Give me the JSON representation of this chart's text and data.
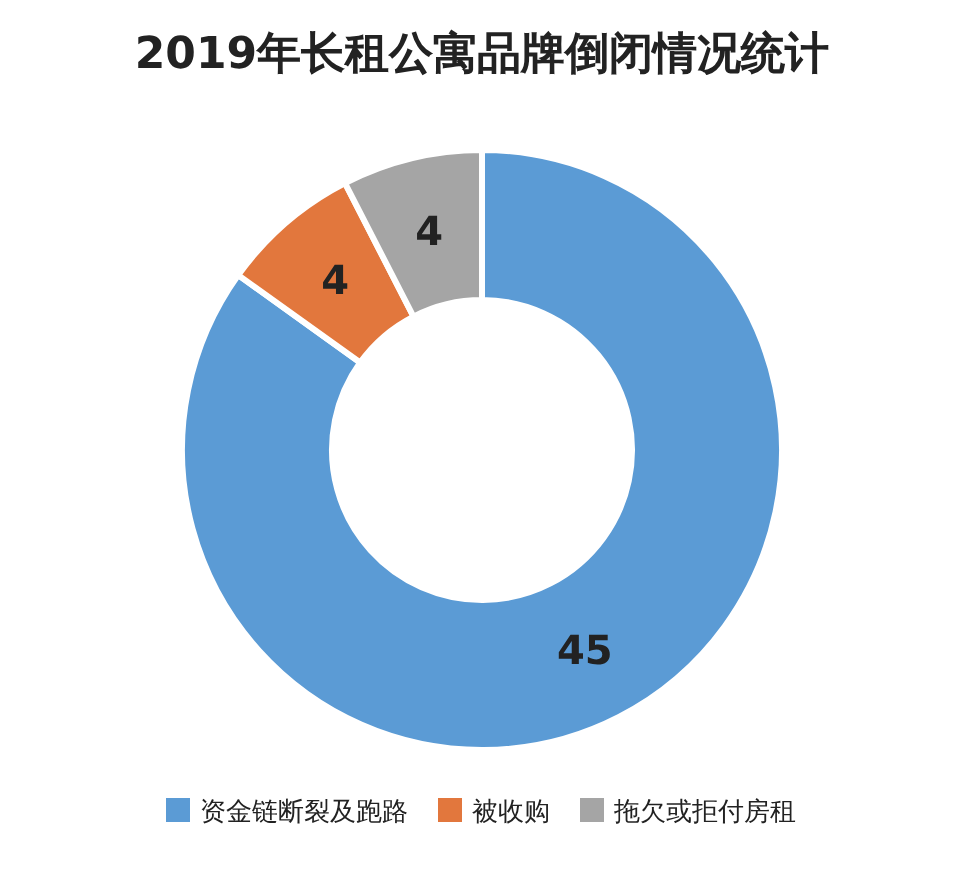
{
  "chart_data": {
    "type": "donut",
    "title": "2019年长租公寓品牌倒闭情况统计",
    "categories": [
      "资金链断裂及跑路",
      "被收购",
      "拖欠或拒付房租"
    ],
    "values": [
      45,
      4,
      4
    ],
    "colors": [
      "#5b9bd5",
      "#e2773d",
      "#a5a5a5"
    ],
    "data_labels": true,
    "legend": "bottom"
  }
}
